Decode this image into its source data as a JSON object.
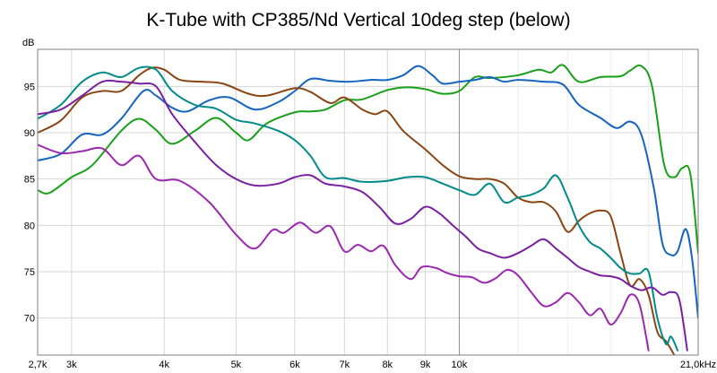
{
  "chart_data": {
    "type": "line",
    "title": "K-Tube with CP385/Nd Vertical 10deg step (below)",
    "ylabel": "dB",
    "xlabel": "",
    "x_scale": "log",
    "xlim": [
      2700,
      21000
    ],
    "ylim": [
      66,
      99
    ],
    "grid": true,
    "x_ticks": [
      {
        "value": 2700,
        "label": "2,7k"
      },
      {
        "value": 3000,
        "label": "3k"
      },
      {
        "value": 4000,
        "label": "4k"
      },
      {
        "value": 5000,
        "label": "5k"
      },
      {
        "value": 6000,
        "label": "6k"
      },
      {
        "value": 7000,
        "label": "7k"
      },
      {
        "value": 8000,
        "label": "8k"
      },
      {
        "value": 9000,
        "label": "9k"
      },
      {
        "value": 10000,
        "label": "10k"
      },
      {
        "value": 21000,
        "label": "21,0kHz"
      }
    ],
    "y_ticks": [
      70,
      75,
      80,
      85,
      90,
      95
    ],
    "series": [
      {
        "color": "#18a018",
        "points": [
          [
            2700,
            83.8
          ],
          [
            2800,
            83.5
          ],
          [
            3000,
            85.2
          ],
          [
            3200,
            86.5
          ],
          [
            3500,
            90.2
          ],
          [
            3700,
            91.5
          ],
          [
            3900,
            90.3
          ],
          [
            4100,
            88.8
          ],
          [
            4400,
            90.2
          ],
          [
            4700,
            91.6
          ],
          [
            5000,
            90
          ],
          [
            5200,
            89.2
          ],
          [
            5500,
            91
          ],
          [
            6000,
            92.2
          ],
          [
            6300,
            92.3
          ],
          [
            6600,
            92.5
          ],
          [
            7000,
            93.5
          ],
          [
            7400,
            93.6
          ],
          [
            8000,
            94.6
          ],
          [
            8500,
            94.9
          ],
          [
            9000,
            94.7
          ],
          [
            9500,
            94.2
          ],
          [
            10000,
            94.5
          ],
          [
            10500,
            96
          ],
          [
            11000,
            95.9
          ],
          [
            12000,
            96.2
          ],
          [
            12800,
            96.8
          ],
          [
            13300,
            96.5
          ],
          [
            13800,
            97.3
          ],
          [
            14500,
            95.5
          ],
          [
            15500,
            96
          ],
          [
            16500,
            96.1
          ],
          [
            17000,
            96.7
          ],
          [
            17600,
            97.2
          ],
          [
            18200,
            95
          ],
          [
            18900,
            86.5
          ],
          [
            19500,
            85.2
          ],
          [
            20000,
            86.2
          ],
          [
            20500,
            85.5
          ],
          [
            21000,
            77
          ]
        ]
      },
      {
        "color": "#1565c0",
        "points": [
          [
            2700,
            87
          ],
          [
            2900,
            87.7
          ],
          [
            3100,
            89.8
          ],
          [
            3300,
            89.8
          ],
          [
            3500,
            91.5
          ],
          [
            3750,
            94.5
          ],
          [
            3900,
            94
          ],
          [
            4100,
            92.7
          ],
          [
            4300,
            92.3
          ],
          [
            4600,
            93.5
          ],
          [
            4900,
            93.8
          ],
          [
            5300,
            92.5
          ],
          [
            5700,
            93.3
          ],
          [
            6000,
            94.5
          ],
          [
            6300,
            95.8
          ],
          [
            6700,
            95.6
          ],
          [
            7100,
            95.5
          ],
          [
            7600,
            95.7
          ],
          [
            8000,
            95.7
          ],
          [
            8400,
            96.2
          ],
          [
            8800,
            97.2
          ],
          [
            9200,
            96.2
          ],
          [
            9500,
            95.3
          ],
          [
            10000,
            95.5
          ],
          [
            10500,
            95.7
          ],
          [
            11000,
            96
          ],
          [
            11500,
            95.5
          ],
          [
            12000,
            95.7
          ],
          [
            13000,
            95.5
          ],
          [
            13800,
            95.2
          ],
          [
            14500,
            93
          ],
          [
            15500,
            91.6
          ],
          [
            16300,
            90.5
          ],
          [
            17000,
            91.2
          ],
          [
            17600,
            89.8
          ],
          [
            18300,
            84
          ],
          [
            18800,
            78
          ],
          [
            19300,
            76.8
          ],
          [
            19700,
            77.2
          ],
          [
            20200,
            79.6
          ],
          [
            20600,
            76.5
          ],
          [
            21000,
            70
          ]
        ]
      },
      {
        "color": "#8b4513",
        "points": [
          [
            2700,
            90
          ],
          [
            2900,
            91.3
          ],
          [
            3100,
            93.8
          ],
          [
            3300,
            94.5
          ],
          [
            3500,
            94.5
          ],
          [
            3700,
            96.2
          ],
          [
            3850,
            97
          ],
          [
            4000,
            96.8
          ],
          [
            4200,
            95.7
          ],
          [
            4500,
            95.5
          ],
          [
            4800,
            95.3
          ],
          [
            5200,
            94.2
          ],
          [
            5500,
            94
          ],
          [
            6000,
            94.8
          ],
          [
            6300,
            94.4
          ],
          [
            6700,
            93.2
          ],
          [
            7000,
            93.8
          ],
          [
            7400,
            92.5
          ],
          [
            7700,
            92
          ],
          [
            8000,
            92.3
          ],
          [
            8400,
            90.2
          ],
          [
            9000,
            88.2
          ],
          [
            9500,
            86.5
          ],
          [
            10000,
            85.3
          ],
          [
            10500,
            85
          ],
          [
            11000,
            85
          ],
          [
            11500,
            84.5
          ],
          [
            12000,
            83
          ],
          [
            12500,
            82.5
          ],
          [
            13000,
            82.5
          ],
          [
            13500,
            81.5
          ],
          [
            14000,
            79.3
          ],
          [
            14500,
            80.5
          ],
          [
            15000,
            81.3
          ],
          [
            15500,
            81.6
          ],
          [
            16000,
            81
          ],
          [
            16500,
            77
          ],
          [
            17000,
            73.5
          ],
          [
            17500,
            74.2
          ],
          [
            18000,
            72.5
          ],
          [
            18500,
            68.5
          ],
          [
            19000,
            67.5
          ],
          [
            19500,
            66
          ]
        ]
      },
      {
        "color": "#008b8b",
        "points": [
          [
            2700,
            91.5
          ],
          [
            2900,
            93
          ],
          [
            3100,
            95.5
          ],
          [
            3300,
            96.5
          ],
          [
            3500,
            96
          ],
          [
            3700,
            97
          ],
          [
            3900,
            96.8
          ],
          [
            4100,
            94.5
          ],
          [
            4400,
            93
          ],
          [
            4700,
            92.6
          ],
          [
            5000,
            91.4
          ],
          [
            5300,
            91
          ],
          [
            5700,
            90.2
          ],
          [
            6000,
            89.2
          ],
          [
            6300,
            87.5
          ],
          [
            6600,
            85.2
          ],
          [
            7000,
            85.1
          ],
          [
            7400,
            84.7
          ],
          [
            8000,
            84.8
          ],
          [
            8500,
            85.2
          ],
          [
            9000,
            85.2
          ],
          [
            9500,
            84.5
          ],
          [
            10000,
            83.8
          ],
          [
            10500,
            83.3
          ],
          [
            11000,
            84.5
          ],
          [
            11500,
            82.5
          ],
          [
            12000,
            83
          ],
          [
            12500,
            83.3
          ],
          [
            13000,
            84
          ],
          [
            13500,
            85.4
          ],
          [
            14000,
            83
          ],
          [
            14500,
            80
          ],
          [
            15000,
            78.2
          ],
          [
            15500,
            77.5
          ],
          [
            16000,
            76.5
          ],
          [
            16500,
            75.4
          ],
          [
            17000,
            74.8
          ],
          [
            17500,
            74.8
          ],
          [
            18000,
            75
          ],
          [
            18500,
            70
          ],
          [
            19000,
            67.2
          ],
          [
            19300,
            68
          ],
          [
            19700,
            66.5
          ]
        ]
      },
      {
        "color": "#9c27b0",
        "points": [
          [
            2700,
            88.7
          ],
          [
            2900,
            87.8
          ],
          [
            3100,
            88
          ],
          [
            3300,
            88.3
          ],
          [
            3500,
            86.5
          ],
          [
            3700,
            87.5
          ],
          [
            3900,
            85
          ],
          [
            4200,
            84.8
          ],
          [
            4600,
            82.5
          ],
          [
            5000,
            79
          ],
          [
            5300,
            77.5
          ],
          [
            5600,
            79.5
          ],
          [
            5800,
            79.2
          ],
          [
            6100,
            80.3
          ],
          [
            6400,
            79.2
          ],
          [
            6700,
            79.9
          ],
          [
            7000,
            77.2
          ],
          [
            7300,
            77.9
          ],
          [
            7600,
            77.2
          ],
          [
            7900,
            77.8
          ],
          [
            8200,
            75.7
          ],
          [
            8600,
            74.2
          ],
          [
            8900,
            75.5
          ],
          [
            9300,
            75.4
          ],
          [
            9600,
            74.9
          ],
          [
            10000,
            74.5
          ],
          [
            10400,
            74.4
          ],
          [
            10800,
            73.8
          ],
          [
            11200,
            74.3
          ],
          [
            11600,
            75.2
          ],
          [
            12000,
            74.6
          ],
          [
            12500,
            72.8
          ],
          [
            13000,
            71.3
          ],
          [
            13500,
            71.7
          ],
          [
            14000,
            72.7
          ],
          [
            14500,
            71.7
          ],
          [
            15000,
            70.3
          ],
          [
            15500,
            71
          ],
          [
            16000,
            69.3
          ],
          [
            16500,
            70.5
          ],
          [
            17000,
            72.5
          ],
          [
            17500,
            71.5
          ],
          [
            18000,
            66.5
          ]
        ]
      },
      {
        "color": "#7b1fa2",
        "points": [
          [
            2700,
            92
          ],
          [
            2900,
            92.5
          ],
          [
            3100,
            94
          ],
          [
            3300,
            95.5
          ],
          [
            3500,
            95.5
          ],
          [
            3700,
            95.3
          ],
          [
            3900,
            95
          ],
          [
            4100,
            92
          ],
          [
            4400,
            89
          ],
          [
            4700,
            86.5
          ],
          [
            5000,
            85
          ],
          [
            5300,
            84.3
          ],
          [
            5700,
            84.5
          ],
          [
            6000,
            85.2
          ],
          [
            6300,
            85.4
          ],
          [
            6600,
            84.5
          ],
          [
            7000,
            84.2
          ],
          [
            7400,
            83.6
          ],
          [
            7800,
            82
          ],
          [
            8200,
            80.2
          ],
          [
            8600,
            80.7
          ],
          [
            9000,
            82
          ],
          [
            9400,
            81.3
          ],
          [
            9800,
            80
          ],
          [
            10200,
            78.8
          ],
          [
            10600,
            77.5
          ],
          [
            11000,
            77
          ],
          [
            11500,
            76.5
          ],
          [
            12000,
            77
          ],
          [
            12500,
            77.8
          ],
          [
            13000,
            78.5
          ],
          [
            13500,
            77.5
          ],
          [
            14000,
            76.5
          ],
          [
            14500,
            75.5
          ],
          [
            15000,
            75
          ],
          [
            15500,
            74.6
          ],
          [
            16000,
            74.5
          ],
          [
            16500,
            74.2
          ],
          [
            17000,
            73.5
          ],
          [
            17600,
            73
          ],
          [
            18200,
            73.3
          ],
          [
            18800,
            72.5
          ],
          [
            19300,
            72.8
          ],
          [
            19800,
            72
          ],
          [
            20300,
            66.5
          ]
        ]
      }
    ]
  }
}
